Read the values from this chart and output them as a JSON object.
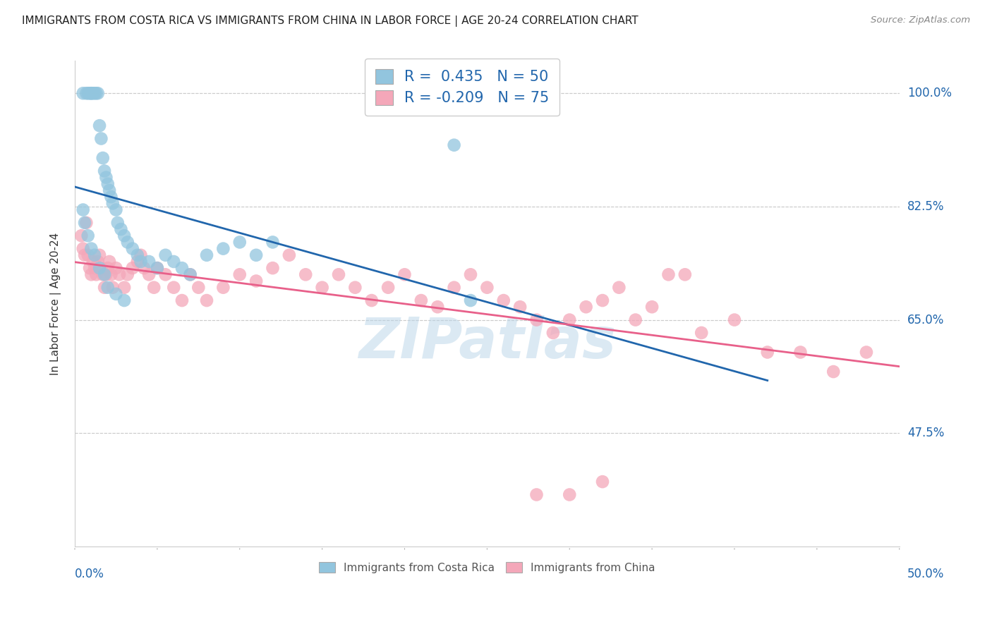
{
  "title": "IMMIGRANTS FROM COSTA RICA VS IMMIGRANTS FROM CHINA IN LABOR FORCE | AGE 20-24 CORRELATION CHART",
  "source": "Source: ZipAtlas.com",
  "ylabel": "In Labor Force | Age 20-24",
  "xlim": [
    0.0,
    0.5
  ],
  "ylim": [
    0.3,
    1.05
  ],
  "yticks": [
    0.475,
    0.65,
    0.825,
    1.0
  ],
  "ytick_labels": [
    "47.5%",
    "65.0%",
    "82.5%",
    "100.0%"
  ],
  "xtick_left_label": "0.0%",
  "xtick_right_label": "50.0%",
  "legend_line1": "R =  0.435   N = 50",
  "legend_line2": "R = -0.209   N = 75",
  "blue_color": "#92c5de",
  "pink_color": "#f4a7b9",
  "line_blue": "#2166ac",
  "line_pink": "#e8608a",
  "watermark": "ZIPatlas",
  "blue_label": "Immigrants from Costa Rica",
  "pink_label": "Immigrants from China",
  "blue_scatter_x": [
    0.005,
    0.007,
    0.008,
    0.009,
    0.01,
    0.01,
    0.011,
    0.012,
    0.013,
    0.014,
    0.015,
    0.016,
    0.017,
    0.018,
    0.019,
    0.02,
    0.021,
    0.022,
    0.023,
    0.025,
    0.026,
    0.028,
    0.03,
    0.032,
    0.035,
    0.038,
    0.04,
    0.045,
    0.05,
    0.055,
    0.06,
    0.065,
    0.07,
    0.08,
    0.09,
    0.1,
    0.11,
    0.12,
    0.23,
    0.005,
    0.006,
    0.008,
    0.01,
    0.012,
    0.015,
    0.018,
    0.02,
    0.025,
    0.03,
    0.24
  ],
  "blue_scatter_y": [
    1.0,
    1.0,
    1.0,
    1.0,
    1.0,
    1.0,
    1.0,
    1.0,
    1.0,
    1.0,
    0.95,
    0.93,
    0.9,
    0.88,
    0.87,
    0.86,
    0.85,
    0.84,
    0.83,
    0.82,
    0.8,
    0.79,
    0.78,
    0.77,
    0.76,
    0.75,
    0.74,
    0.74,
    0.73,
    0.75,
    0.74,
    0.73,
    0.72,
    0.75,
    0.76,
    0.77,
    0.75,
    0.77,
    0.92,
    0.82,
    0.8,
    0.78,
    0.76,
    0.75,
    0.73,
    0.72,
    0.7,
    0.69,
    0.68,
    0.68
  ],
  "pink_scatter_x": [
    0.004,
    0.005,
    0.006,
    0.007,
    0.008,
    0.009,
    0.01,
    0.011,
    0.012,
    0.013,
    0.014,
    0.015,
    0.016,
    0.017,
    0.018,
    0.019,
    0.02,
    0.021,
    0.022,
    0.023,
    0.025,
    0.027,
    0.03,
    0.032,
    0.035,
    0.038,
    0.04,
    0.042,
    0.045,
    0.048,
    0.05,
    0.055,
    0.06,
    0.065,
    0.07,
    0.075,
    0.08,
    0.09,
    0.1,
    0.11,
    0.12,
    0.13,
    0.14,
    0.15,
    0.16,
    0.17,
    0.18,
    0.19,
    0.2,
    0.21,
    0.22,
    0.23,
    0.24,
    0.25,
    0.26,
    0.27,
    0.28,
    0.29,
    0.3,
    0.31,
    0.32,
    0.33,
    0.34,
    0.35,
    0.36,
    0.37,
    0.38,
    0.4,
    0.42,
    0.44,
    0.46,
    0.48,
    0.28,
    0.3,
    0.32
  ],
  "pink_scatter_y": [
    0.78,
    0.76,
    0.75,
    0.8,
    0.75,
    0.73,
    0.72,
    0.74,
    0.73,
    0.72,
    0.74,
    0.75,
    0.73,
    0.72,
    0.7,
    0.72,
    0.73,
    0.74,
    0.72,
    0.7,
    0.73,
    0.72,
    0.7,
    0.72,
    0.73,
    0.74,
    0.75,
    0.73,
    0.72,
    0.7,
    0.73,
    0.72,
    0.7,
    0.68,
    0.72,
    0.7,
    0.68,
    0.7,
    0.72,
    0.71,
    0.73,
    0.75,
    0.72,
    0.7,
    0.72,
    0.7,
    0.68,
    0.7,
    0.72,
    0.68,
    0.67,
    0.7,
    0.72,
    0.7,
    0.68,
    0.67,
    0.65,
    0.63,
    0.65,
    0.67,
    0.68,
    0.7,
    0.65,
    0.67,
    0.72,
    0.72,
    0.63,
    0.65,
    0.6,
    0.6,
    0.57,
    0.6,
    0.38,
    0.38,
    0.4
  ]
}
